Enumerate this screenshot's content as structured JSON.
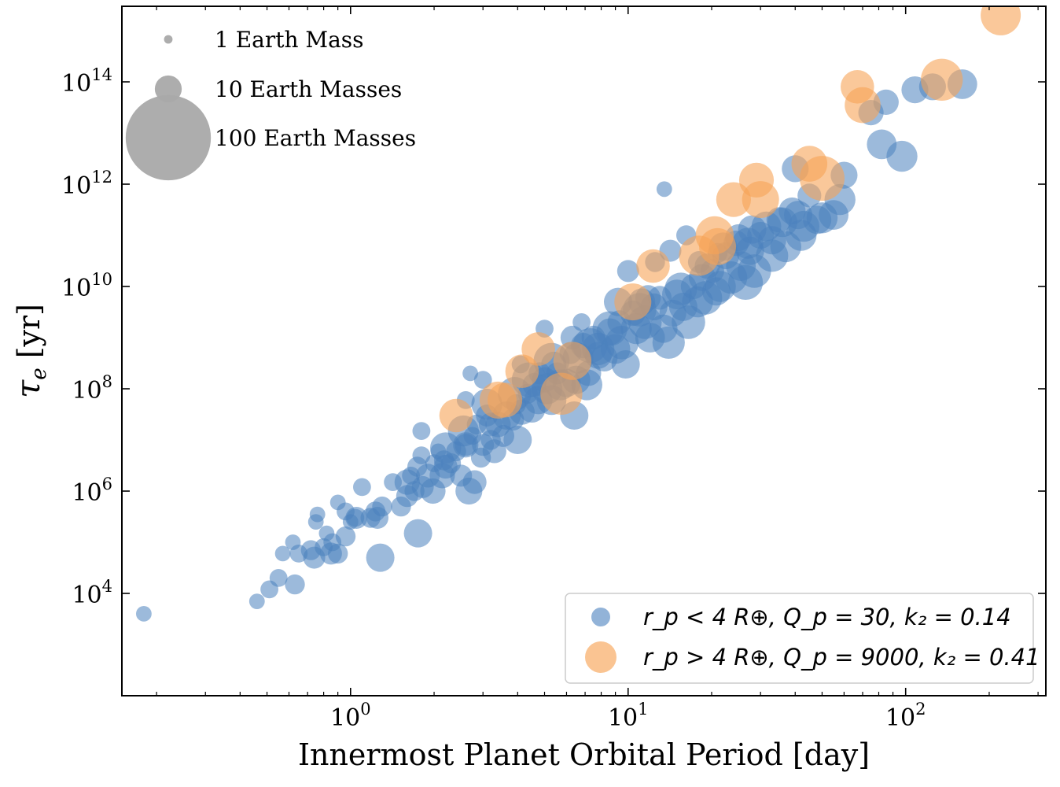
{
  "chart_data": {
    "type": "scatter",
    "title": "",
    "xlabel": "Innermost Planet Orbital Period [day]",
    "ylabel": "τe [yr]",
    "x_scale": "log",
    "y_scale": "log",
    "xlim": [
      0.15,
      320
    ],
    "ylim": [
      100,
      3000000000000000.0
    ],
    "grid": false,
    "x_ticks": [
      {
        "base": "10",
        "exp": "0",
        "value": 1
      },
      {
        "base": "10",
        "exp": "1",
        "value": 10
      },
      {
        "base": "10",
        "exp": "2",
        "value": 100
      }
    ],
    "y_ticks": [
      {
        "base": "10",
        "exp": "4",
        "value": 10000
      },
      {
        "base": "10",
        "exp": "6",
        "value": 1000000
      },
      {
        "base": "10",
        "exp": "8",
        "value": 100000000
      },
      {
        "base": "10",
        "exp": "10",
        "value": 10000000000
      },
      {
        "base": "10",
        "exp": "12",
        "value": 1000000000000
      },
      {
        "base": "10",
        "exp": "14",
        "value": 100000000000000
      }
    ],
    "size_legend": {
      "placement": "top-left",
      "color": "#a9a9a9",
      "entries": [
        {
          "label": "1 Earth Mass",
          "mass": 1
        },
        {
          "label": "10 Earth Masses",
          "mass": 10
        },
        {
          "label": "100 Earth Masses",
          "mass": 100
        }
      ]
    },
    "series_legend": {
      "placement": "bottom-right",
      "entries": [
        {
          "series": 0,
          "label": "r_p < 4 R⊕, Q_p = 30, k₂ = 0.14"
        },
        {
          "series": 1,
          "label": "r_p > 4 R⊕, Q_p = 9000, k₂ = 0.41"
        }
      ]
    },
    "series": [
      {
        "color": "#4a81be",
        "opacity": 0.55,
        "points": [
          [
            0.18,
            4000.0,
            3
          ],
          [
            0.46,
            7000.0,
            3
          ],
          [
            0.51,
            12000.0,
            4
          ],
          [
            0.55,
            20000.0,
            4
          ],
          [
            0.63,
            15000.0,
            5
          ],
          [
            0.57,
            60000.0,
            3
          ],
          [
            0.62,
            100000.0,
            3
          ],
          [
            0.65,
            60000.0,
            4
          ],
          [
            0.72,
            70000.0,
            5
          ],
          [
            0.74,
            50000.0,
            6
          ],
          [
            0.75,
            250000.0,
            3
          ],
          [
            0.76,
            350000.0,
            3
          ],
          [
            0.8,
            80000.0,
            4
          ],
          [
            0.85,
            60000.0,
            6
          ],
          [
            0.86,
            100000.0,
            4
          ],
          [
            0.9,
            60000.0,
            5
          ],
          [
            0.9,
            600000.0,
            3
          ],
          [
            0.96,
            130000.0,
            5
          ],
          [
            0.96,
            400000.0,
            4
          ],
          [
            1.0,
            250000.0,
            3
          ],
          [
            1.04,
            300000.0,
            4
          ],
          [
            1.1,
            1200000.0,
            4
          ],
          [
            1.18,
            300000.0,
            5
          ],
          [
            1.23,
            400000.0,
            5
          ],
          [
            1.28,
            50000.0,
            10
          ],
          [
            1.25,
            300000.0,
            6
          ],
          [
            1.3,
            500000.0,
            5
          ],
          [
            1.42,
            1500000.0,
            4
          ],
          [
            1.52,
            500000.0,
            5
          ],
          [
            1.6,
            800000.0,
            6
          ],
          [
            1.65,
            2000000.0,
            4
          ],
          [
            1.7,
            1000000.0,
            5
          ],
          [
            1.74,
            3000000.0,
            5
          ],
          [
            1.75,
            150000.0,
            10
          ],
          [
            1.8,
            5000000.0,
            4
          ],
          [
            1.8,
            15000000.0,
            4
          ],
          [
            1.82,
            1200000.0,
            6
          ],
          [
            1.9,
            2000000.0,
            7
          ],
          [
            1.98,
            1000000.0,
            8
          ],
          [
            2.0,
            3500000.0,
            4
          ],
          [
            2.07,
            6000000.0,
            3
          ],
          [
            2.14,
            2000000.0,
            8
          ],
          [
            2.17,
            4000000.0,
            5
          ],
          [
            2.3,
            3500000.0,
            5
          ],
          [
            2.4,
            6000000.0,
            5
          ],
          [
            2.5,
            2000000.0,
            6
          ],
          [
            2.6,
            8000000.0,
            6
          ],
          [
            2.67,
            1000000.0,
            9
          ],
          [
            2.8,
            1500000.0,
            7
          ],
          [
            2.75,
            12000000.0,
            4
          ],
          [
            2.85,
            20000000.0,
            5
          ],
          [
            2.95,
            4500000.0,
            5
          ],
          [
            3.1,
            30000000.0,
            6
          ],
          [
            3.3,
            6000000.0,
            7
          ],
          [
            3.55,
            12000000.0,
            6
          ],
          [
            3.2,
            10000000.0,
            5
          ],
          [
            3.0,
            8000000.0,
            6
          ],
          [
            3.4,
            20000000.0,
            8
          ],
          [
            3.65,
            30000000.0,
            10
          ],
          [
            3.85,
            25000000.0,
            6
          ],
          [
            4.0,
            10000000.0,
            10
          ],
          [
            3.95,
            50000000.0,
            5
          ],
          [
            4.15,
            35000000.0,
            8
          ],
          [
            4.35,
            80000000.0,
            5
          ],
          [
            4.5,
            40000000.0,
            9
          ],
          [
            4.6,
            120000000.0,
            7
          ],
          [
            4.75,
            60000000.0,
            10
          ],
          [
            4.8,
            200000000.0,
            6
          ],
          [
            5.0,
            150000000.0,
            8
          ],
          [
            5.1,
            100000000.0,
            12
          ],
          [
            5.3,
            60000000.0,
            11
          ],
          [
            5.4,
            300000000.0,
            8
          ],
          [
            5.55,
            200000000.0,
            6
          ],
          [
            5.7,
            120000000.0,
            12
          ],
          [
            6.0,
            130000000.0,
            10
          ],
          [
            6.2,
            500000000.0,
            6
          ],
          [
            6.4,
            30000000.0,
            10
          ],
          [
            6.6,
            400000000.0,
            12
          ],
          [
            6.9,
            700000000.0,
            8
          ],
          [
            7.2,
            200000000.0,
            8
          ],
          [
            7.1,
            120000000.0,
            12
          ],
          [
            7.5,
            1000000000.0,
            7
          ],
          [
            7.8,
            600000000.0,
            13
          ],
          [
            8.2,
            400000000.0,
            9
          ],
          [
            8.6,
            1300000000.0,
            9
          ],
          [
            9.0,
            600000000.0,
            11
          ],
          [
            9.3,
            2000000000.0,
            7
          ],
          [
            9.5,
            800000000.0,
            14
          ],
          [
            9.8,
            300000000.0,
            10
          ],
          [
            10.4,
            3000000000.0,
            8
          ],
          [
            10.7,
            1500000000.0,
            12
          ],
          [
            11.2,
            5000000000.0,
            9
          ],
          [
            11.5,
            2000000000.0,
            14
          ],
          [
            12.0,
            1000000000.0,
            11
          ],
          [
            12.4,
            4000000000.0,
            9
          ],
          [
            13.0,
            6000000000.0,
            7
          ],
          [
            13.4,
            1500000000.0,
            10
          ],
          [
            14.0,
            800000000.0,
            13
          ],
          [
            14.5,
            3000000000.0,
            9
          ],
          [
            15.0,
            7000000000.0,
            11
          ],
          [
            15.8,
            4000000000.0,
            10
          ],
          [
            16.5,
            2000000000.0,
            14
          ],
          [
            17.2,
            10000000000.0,
            8
          ],
          [
            17.8,
            5000000000.0,
            12
          ],
          [
            18.5,
            15000000000.0,
            9
          ],
          [
            19.3,
            25000000000.0,
            8
          ],
          [
            20.1,
            20000000000.0,
            7
          ],
          [
            20.8,
            8000000000.0,
            10
          ],
          [
            21.5,
            10000000000.0,
            12
          ],
          [
            22.5,
            40000000000.0,
            9
          ],
          [
            23.5,
            15000000000.0,
            13
          ],
          [
            24.5,
            70000000000.0,
            8
          ],
          [
            25.5,
            25000000000.0,
            11
          ],
          [
            26.5,
            12000000000.0,
            15
          ],
          [
            27.5,
            50000000000.0,
            10
          ],
          [
            28.5,
            20000000000.0,
            14
          ],
          [
            30.0,
            100000000000.0,
            9
          ],
          [
            31.5,
            150000000000.0,
            11
          ],
          [
            33.0,
            40000000000.0,
            13
          ],
          [
            35.0,
            200000000000.0,
            8
          ],
          [
            37.0,
            60000000000.0,
            12
          ],
          [
            39.0,
            300000000000.0,
            9
          ],
          [
            41.0,
            250000000000.0,
            10
          ],
          [
            43.0,
            150000000000.0,
            12
          ],
          [
            45.0,
            600000000000.0,
            7
          ],
          [
            48.0,
            200000000000.0,
            10
          ],
          [
            55.0,
            250000000000.0,
            11
          ],
          [
            60.0,
            1500000000000.0,
            9
          ],
          [
            58.0,
            500000000000.0,
            12
          ],
          [
            75.0,
            25000000000000.0,
            8
          ],
          [
            85.0,
            40000000000000.0,
            8
          ],
          [
            82.0,
            6000000000000.0,
            11
          ],
          [
            97.0,
            3500000000000.0,
            12
          ],
          [
            108.0,
            70000000000000.0,
            9
          ],
          [
            125.0,
            80000000000000.0,
            9
          ],
          [
            160.0,
            90000000000000.0,
            11
          ],
          [
            13.5,
            800000000000.0,
            3
          ],
          [
            40.0,
            2000000000000.0,
            9
          ],
          [
            33.0,
            80000000000.0,
            10
          ],
          [
            14.2,
            50000000000.0,
            6
          ],
          [
            10.0,
            20000000000.0,
            6
          ],
          [
            9.2,
            5000000000.0,
            10
          ],
          [
            6.3,
            1000000000.0,
            7
          ],
          [
            6.5,
            150000000.0,
            10
          ],
          [
            7.8,
            450000000.0,
            9
          ],
          [
            3.2,
            20000000.0,
            7
          ],
          [
            2.6,
            8000000.0,
            8
          ],
          [
            2.2,
            3000000.0,
            7
          ],
          [
            1.6,
            1500000.0,
            8
          ],
          [
            1.05,
            300000.0,
            6
          ],
          [
            0.82,
            150000.0,
            3
          ],
          [
            18.0,
            30000000000.0,
            6
          ],
          [
            16.2,
            100000000000.0,
            5
          ],
          [
            21.0,
            45000000000.0,
            5
          ],
          [
            5.0,
            1500000000.0,
            4
          ],
          [
            6.8,
            2000000000.0,
            4
          ],
          [
            4.1,
            300000000.0,
            4
          ],
          [
            3.0,
            150000000.0,
            4
          ],
          [
            2.7,
            200000000.0,
            3
          ],
          [
            2.6,
            60000000.0,
            4
          ],
          [
            12.5,
            30000000000.0,
            5
          ],
          [
            11.8,
            6000000000.0,
            8
          ],
          [
            22.0,
            60000000000.0,
            10
          ],
          [
            25.0,
            90000000000.0,
            9
          ],
          [
            28.0,
            130000000000.0,
            10
          ],
          [
            42.0,
            100000000000.0,
            12
          ],
          [
            27.0,
            70000000000.0,
            12
          ],
          [
            50.0,
            220000000000.0,
            12
          ],
          [
            36.0,
            180000000000.0,
            11
          ],
          [
            19.0,
            6000000000.0,
            14
          ],
          [
            15.5,
            9000000000.0,
            13
          ],
          [
            11.0,
            3500000000.0,
            14
          ],
          [
            8.6,
            1500000000.0,
            15
          ],
          [
            7.3,
            700000000.0,
            15
          ],
          [
            5.3,
            350000000.0,
            16
          ],
          [
            4.4,
            150000000.0,
            15
          ],
          [
            3.9,
            80000000.0,
            14
          ],
          [
            3.1,
            50000000.0,
            12
          ],
          [
            2.55,
            15000000.0,
            12
          ],
          [
            2.2,
            7000000.0,
            12
          ]
        ]
      },
      {
        "color": "#f7a457",
        "opacity": 0.6,
        "points": [
          [
            2.4,
            30000000.0,
            14
          ],
          [
            3.4,
            60000000.0,
            17
          ],
          [
            3.6,
            60000000.0,
            15
          ],
          [
            4.15,
            220000000.0,
            14
          ],
          [
            4.75,
            600000000.0,
            14
          ],
          [
            5.75,
            80000000.0,
            22
          ],
          [
            6.3,
            350000000.0,
            18
          ],
          [
            10.4,
            5000000000.0,
            17
          ],
          [
            12.3,
            25000000000.0,
            14
          ],
          [
            18.0,
            40000000000.0,
            20
          ],
          [
            20.5,
            100000000000.0,
            18
          ],
          [
            21.0,
            60000000000.0,
            17
          ],
          [
            24.0,
            500000000000.0,
            15
          ],
          [
            29.0,
            1200000000000.0,
            15
          ],
          [
            30.0,
            500000000000.0,
            17
          ],
          [
            45.0,
            2500000000000.0,
            16
          ],
          [
            50.0,
            1300000000000.0,
            25
          ],
          [
            67.0,
            80000000000000.0,
            14
          ],
          [
            70.0,
            35000000000000.0,
            16
          ],
          [
            135.0,
            110000000000000.0,
            22
          ],
          [
            220.0,
            2000000000000000.0,
            20
          ]
        ]
      }
    ]
  }
}
